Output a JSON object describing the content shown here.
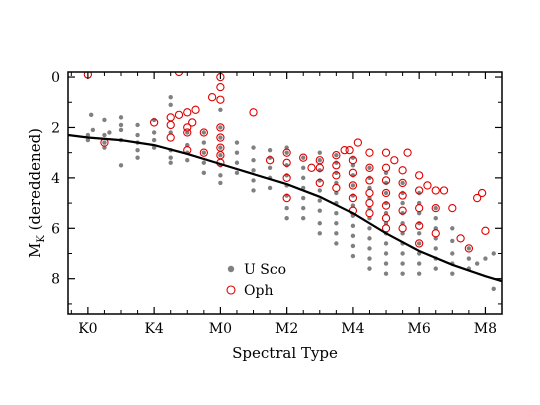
{
  "chart_data": {
    "type": "scatter",
    "xlabel": "Spectral Type",
    "ylabel_main": "M",
    "ylabel_sub": "K",
    "ylabel_rest": " (dereddened)",
    "x_ticks": [
      {
        "value": 0,
        "label": "K0"
      },
      {
        "value": 4,
        "label": "K4"
      },
      {
        "value": 8,
        "label": "M0"
      },
      {
        "value": 12,
        "label": "M2"
      },
      {
        "value": 16,
        "label": "M4"
      },
      {
        "value": 20,
        "label": "M6"
      },
      {
        "value": 24,
        "label": "M8"
      }
    ],
    "y_ticks": [
      0,
      2,
      4,
      6,
      8
    ],
    "xlim": [
      -1.2,
      25.0
    ],
    "ylim": [
      9.4,
      -0.2
    ],
    "y_inverted": true,
    "grid": false,
    "legend_position": "bottom-center",
    "colors": {
      "usco": "#808080",
      "oph": "#e00000",
      "curve": "#000000"
    },
    "series": [
      {
        "name": "U Sco",
        "marker": "filled-circle",
        "points": [
          [
            0,
            2.3
          ],
          [
            0,
            2.5
          ],
          [
            0.2,
            1.5
          ],
          [
            0.3,
            2.1
          ],
          [
            1,
            2.6
          ],
          [
            1,
            2.8
          ],
          [
            1,
            1.7
          ],
          [
            1,
            2.3
          ],
          [
            1.3,
            2.2
          ],
          [
            2,
            2.1
          ],
          [
            2,
            2.5
          ],
          [
            2,
            1.6
          ],
          [
            2,
            1.9
          ],
          [
            2,
            3.5
          ],
          [
            3,
            2.3
          ],
          [
            3,
            2.6
          ],
          [
            3,
            2.9
          ],
          [
            3,
            3.2
          ],
          [
            3,
            1.9
          ],
          [
            4,
            1.7
          ],
          [
            4,
            2.2
          ],
          [
            4,
            2.8
          ],
          [
            4,
            2.5
          ],
          [
            5,
            1.1
          ],
          [
            5,
            0.8
          ],
          [
            5,
            2.2
          ],
          [
            5,
            3.4
          ],
          [
            5,
            2.9
          ],
          [
            5,
            3.2
          ],
          [
            6,
            2.2
          ],
          [
            6,
            2.7
          ],
          [
            6,
            3.0
          ],
          [
            6,
            3.3
          ],
          [
            7,
            2.6
          ],
          [
            7,
            3.0
          ],
          [
            7,
            3.4
          ],
          [
            7,
            3.8
          ],
          [
            7,
            2.2
          ],
          [
            8,
            2.4
          ],
          [
            8,
            2.8
          ],
          [
            8,
            3.1
          ],
          [
            8,
            3.5
          ],
          [
            8,
            3.9
          ],
          [
            8,
            2.0
          ],
          [
            8,
            4.2
          ],
          [
            8,
            1.3
          ],
          [
            9,
            3.0
          ],
          [
            9,
            3.4
          ],
          [
            9,
            3.8
          ],
          [
            9,
            2.6
          ],
          [
            10,
            3.3
          ],
          [
            10,
            3.7
          ],
          [
            10,
            4.1
          ],
          [
            10,
            2.8
          ],
          [
            10,
            4.5
          ],
          [
            11,
            3.2
          ],
          [
            11,
            3.6
          ],
          [
            11,
            4.0
          ],
          [
            11,
            4.4
          ],
          [
            11,
            2.9
          ],
          [
            12,
            3.0
          ],
          [
            12,
            3.5
          ],
          [
            12,
            3.9
          ],
          [
            12,
            4.3
          ],
          [
            12,
            4.7
          ],
          [
            12,
            5.2
          ],
          [
            12,
            2.8
          ],
          [
            12,
            5.6
          ],
          [
            13,
            3.2
          ],
          [
            13,
            3.6
          ],
          [
            13,
            4.0
          ],
          [
            13,
            4.4
          ],
          [
            13,
            4.8
          ],
          [
            13,
            5.2
          ],
          [
            13,
            5.6
          ],
          [
            14,
            3.3
          ],
          [
            14,
            3.7
          ],
          [
            14,
            4.1
          ],
          [
            14,
            4.5
          ],
          [
            14,
            4.9
          ],
          [
            14,
            5.3
          ],
          [
            14,
            5.8
          ],
          [
            14,
            6.2
          ],
          [
            14,
            3.0
          ],
          [
            15,
            3.4
          ],
          [
            15,
            3.8
          ],
          [
            15,
            4.2
          ],
          [
            15,
            4.6
          ],
          [
            15,
            5.0
          ],
          [
            15,
            5.4
          ],
          [
            15,
            5.8
          ],
          [
            15,
            6.2
          ],
          [
            15,
            6.6
          ],
          [
            15,
            3.1
          ],
          [
            16,
            3.5
          ],
          [
            16,
            3.9
          ],
          [
            16,
            4.3
          ],
          [
            16,
            4.7
          ],
          [
            16,
            5.1
          ],
          [
            16,
            5.5
          ],
          [
            16,
            5.9
          ],
          [
            16,
            6.3
          ],
          [
            16,
            6.7
          ],
          [
            16,
            7.1
          ],
          [
            16,
            3.2
          ],
          [
            17,
            3.6
          ],
          [
            17,
            4.0
          ],
          [
            17,
            4.4
          ],
          [
            17,
            4.8
          ],
          [
            17,
            5.2
          ],
          [
            17,
            5.6
          ],
          [
            17,
            6.0
          ],
          [
            17,
            6.4
          ],
          [
            17,
            6.8
          ],
          [
            17,
            7.2
          ],
          [
            17,
            7.6
          ],
          [
            18,
            3.8
          ],
          [
            18,
            4.2
          ],
          [
            18,
            4.6
          ],
          [
            18,
            5.0
          ],
          [
            18,
            5.4
          ],
          [
            18,
            5.8
          ],
          [
            18,
            6.2
          ],
          [
            18,
            6.6
          ],
          [
            18,
            7.0
          ],
          [
            18,
            7.4
          ],
          [
            18,
            7.8
          ],
          [
            19,
            4.2
          ],
          [
            19,
            4.6
          ],
          [
            19,
            5.0
          ],
          [
            19,
            5.4
          ],
          [
            19,
            5.8
          ],
          [
            19,
            6.2
          ],
          [
            19,
            6.6
          ],
          [
            19,
            7.0
          ],
          [
            19,
            7.4
          ],
          [
            19,
            7.8
          ],
          [
            20,
            4.6
          ],
          [
            20,
            5.0
          ],
          [
            20,
            5.4
          ],
          [
            20,
            5.8
          ],
          [
            20,
            6.2
          ],
          [
            20,
            6.6
          ],
          [
            20,
            7.0
          ],
          [
            20,
            7.4
          ],
          [
            20,
            7.8
          ],
          [
            21,
            5.2
          ],
          [
            21,
            5.6
          ],
          [
            21,
            6.0
          ],
          [
            21,
            6.4
          ],
          [
            21,
            6.8
          ],
          [
            21,
            7.2
          ],
          [
            21,
            7.6
          ],
          [
            22,
            6.0
          ],
          [
            22,
            6.5
          ],
          [
            22,
            7.0
          ],
          [
            22,
            7.4
          ],
          [
            22,
            7.8
          ],
          [
            23,
            6.8
          ],
          [
            23,
            7.2
          ],
          [
            23,
            7.6
          ],
          [
            23.5,
            7.4
          ],
          [
            24,
            7.2
          ],
          [
            24.5,
            7.0
          ],
          [
            24.5,
            8.4
          ]
        ]
      },
      {
        "name": "Oph",
        "marker": "open-circle",
        "points": [
          [
            0,
            -0.1
          ],
          [
            1,
            2.6
          ],
          [
            4,
            1.8
          ],
          [
            5,
            1.6
          ],
          [
            5,
            1.9
          ],
          [
            5,
            2.4
          ],
          [
            5.5,
            1.5
          ],
          [
            6,
            1.4
          ],
          [
            6,
            2.0
          ],
          [
            6,
            2.2
          ],
          [
            6,
            2.9
          ],
          [
            6.3,
            1.8
          ],
          [
            6.5,
            1.3
          ],
          [
            7,
            3.0
          ],
          [
            7,
            2.2
          ],
          [
            5.5,
            -0.2
          ],
          [
            8,
            2.0
          ],
          [
            8,
            2.4
          ],
          [
            8,
            2.8
          ],
          [
            8,
            3.1
          ],
          [
            8,
            3.4
          ],
          [
            8,
            0.9
          ],
          [
            8,
            0.4
          ],
          [
            8,
            0.0
          ],
          [
            7.5,
            0.8
          ],
          [
            10,
            1.4
          ],
          [
            11,
            3.3
          ],
          [
            12,
            3.0
          ],
          [
            12,
            3.4
          ],
          [
            12,
            4.0
          ],
          [
            12,
            4.8
          ],
          [
            13,
            3.2
          ],
          [
            13.5,
            3.6
          ],
          [
            14,
            3.3
          ],
          [
            14,
            3.6
          ],
          [
            14,
            4.2
          ],
          [
            15,
            3.1
          ],
          [
            15,
            3.5
          ],
          [
            15,
            3.9
          ],
          [
            15,
            4.4
          ],
          [
            15.5,
            2.9
          ],
          [
            15.8,
            2.9
          ],
          [
            16,
            3.3
          ],
          [
            16,
            3.8
          ],
          [
            16,
            4.3
          ],
          [
            16,
            4.8
          ],
          [
            16,
            5.3
          ],
          [
            16.3,
            2.6
          ],
          [
            17,
            3.0
          ],
          [
            17,
            3.6
          ],
          [
            17,
            4.1
          ],
          [
            17,
            4.6
          ],
          [
            17,
            5.0
          ],
          [
            17,
            5.4
          ],
          [
            18,
            3.0
          ],
          [
            18,
            3.6
          ],
          [
            18,
            4.1
          ],
          [
            18,
            4.6
          ],
          [
            18,
            5.1
          ],
          [
            18,
            5.6
          ],
          [
            18,
            6.0
          ],
          [
            18.5,
            3.3
          ],
          [
            19,
            3.7
          ],
          [
            19,
            4.2
          ],
          [
            19,
            4.7
          ],
          [
            19,
            5.3
          ],
          [
            19,
            6.0
          ],
          [
            19.3,
            3.0
          ],
          [
            20,
            3.9
          ],
          [
            20,
            4.5
          ],
          [
            20,
            5.2
          ],
          [
            20,
            5.9
          ],
          [
            20,
            6.6
          ],
          [
            20.5,
            4.3
          ],
          [
            21,
            4.5
          ],
          [
            21,
            5.2
          ],
          [
            21,
            6.2
          ],
          [
            21.5,
            4.5
          ],
          [
            22,
            5.2
          ],
          [
            22.5,
            6.4
          ],
          [
            23,
            6.8
          ],
          [
            23.5,
            4.8
          ],
          [
            23.8,
            4.6
          ],
          [
            24,
            6.1
          ]
        ]
      }
    ],
    "curve": {
      "name": "",
      "points": [
        [
          -1.2,
          2.3
        ],
        [
          0,
          2.4
        ],
        [
          2,
          2.5
        ],
        [
          4,
          2.7
        ],
        [
          6,
          3.05
        ],
        [
          8,
          3.45
        ],
        [
          10,
          3.85
        ],
        [
          12,
          4.25
        ],
        [
          14,
          4.75
        ],
        [
          16,
          5.4
        ],
        [
          18,
          6.2
        ],
        [
          20,
          6.9
        ],
        [
          22,
          7.45
        ],
        [
          24,
          7.9
        ],
        [
          25,
          8.1
        ]
      ]
    },
    "legend": [
      {
        "label": "U Sco",
        "marker": "filled-circle"
      },
      {
        "label": "Oph",
        "marker": "open-circle"
      }
    ]
  }
}
